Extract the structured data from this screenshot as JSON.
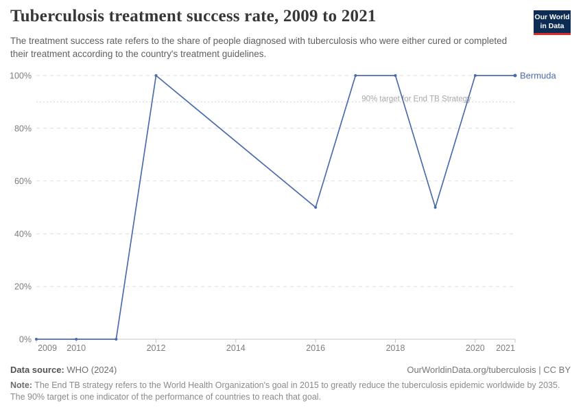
{
  "header": {
    "title": "Tuberculosis treatment success rate, 2009 to 2021",
    "subtitle": "The treatment success rate refers to the share of people diagnosed with tuberculosis who were either cured or completed their treatment according to the country's treatment guidelines.",
    "logo": {
      "line1": "Our World",
      "line2": "in Data"
    }
  },
  "chart_data": {
    "type": "line",
    "title": "Tuberculosis treatment success rate, 2009 to 2021",
    "xlabel": "",
    "ylabel": "",
    "grid": true,
    "legend_position": "end-of-line",
    "x": {
      "min": 2009,
      "max": 2021,
      "ticks": [
        2009,
        2010,
        2012,
        2014,
        2016,
        2018,
        2020,
        2021
      ]
    },
    "y": {
      "min": 0,
      "max": 100,
      "ticks": [
        0,
        20,
        40,
        60,
        80,
        100
      ],
      "tick_suffix": "%"
    },
    "target_line": {
      "value": 90,
      "label": "90% target for End TB Strategy"
    },
    "series": [
      {
        "name": "Bermuda",
        "color": "#4c6bab",
        "points": [
          [
            2009,
            0
          ],
          [
            2010,
            0
          ],
          [
            2011,
            0
          ],
          [
            2012,
            100
          ],
          [
            2016,
            50
          ],
          [
            2017,
            100
          ],
          [
            2018,
            100
          ],
          [
            2019,
            50
          ],
          [
            2020,
            100
          ],
          [
            2021,
            100
          ]
        ]
      }
    ]
  },
  "footer": {
    "datasource_label": "Data source:",
    "datasource_value": " WHO (2024)",
    "link": "OurWorldinData.org/tuberculosis | CC BY",
    "note_label": "Note:",
    "note_text": " The End TB strategy refers to the World Health Organization's goal in 2015 to greatly reduce the tuberculosis epidemic worldwide by 2035. The 90% target is one indicator of the performance of countries to reach that goal."
  },
  "colors": {
    "accent": "#4c6bab",
    "logo_bg": "#0d2c54",
    "logo_red": "#dc2a27",
    "gridline": "#dedede",
    "axis_line": "#c4c4c4",
    "target_line": "#d2d2d2"
  }
}
